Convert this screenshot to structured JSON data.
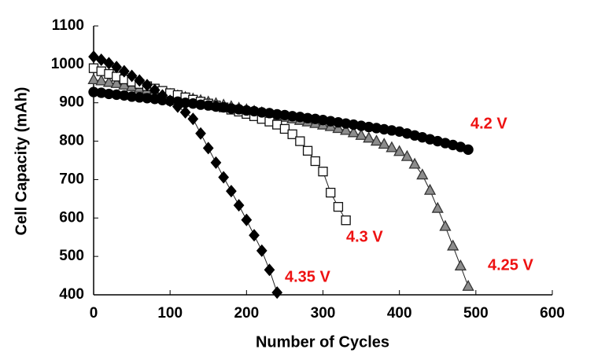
{
  "chart_data": {
    "type": "line",
    "xlabel": "Number of Cycles",
    "ylabel": "Cell Capacity (mAh)",
    "xlim": [
      0,
      600
    ],
    "xticks": [
      0,
      100,
      200,
      300,
      400,
      500,
      600
    ],
    "ylim": [
      400,
      1100
    ],
    "yticks": [
      400,
      500,
      600,
      700,
      800,
      900,
      1000,
      1100
    ],
    "label_color": "#ee1111",
    "series": [
      {
        "name": "4.25 V",
        "marker": "triangle",
        "color": "#8c8c8c",
        "edgecolor": "#333333",
        "x": [
          0,
          10,
          20,
          30,
          40,
          50,
          60,
          70,
          80,
          90,
          100,
          110,
          120,
          130,
          140,
          150,
          160,
          170,
          180,
          190,
          200,
          210,
          220,
          230,
          240,
          250,
          260,
          270,
          280,
          290,
          300,
          310,
          320,
          330,
          340,
          350,
          360,
          370,
          380,
          390,
          400,
          410,
          420,
          430,
          440,
          450,
          460,
          470,
          480,
          490
        ],
        "values": [
          960,
          957,
          953,
          950,
          946,
          942,
          938,
          934,
          930,
          926,
          922,
          918,
          914,
          910,
          906,
          902,
          898,
          894,
          890,
          886,
          882,
          878,
          874,
          870,
          866,
          862,
          858,
          854,
          850,
          846,
          842,
          838,
          833,
          828,
          822,
          815,
          808,
          800,
          792,
          783,
          773,
          760,
          740,
          712,
          672,
          625,
          578,
          527,
          475,
          422
        ]
      },
      {
        "name": "4.3 V",
        "marker": "square",
        "color": "#ffffff",
        "edgecolor": "#111111",
        "x": [
          0,
          10,
          20,
          30,
          40,
          50,
          60,
          70,
          80,
          90,
          100,
          110,
          120,
          130,
          140,
          150,
          160,
          170,
          180,
          190,
          200,
          210,
          220,
          230,
          240,
          250,
          260,
          270,
          280,
          290,
          300,
          310,
          320,
          330
        ],
        "values": [
          990,
          982,
          975,
          968,
          961,
          955,
          949,
          943,
          937,
          931,
          925,
          920,
          914,
          908,
          903,
          898,
          893,
          888,
          882,
          877,
          871,
          865,
          858,
          851,
          843,
          832,
          818,
          800,
          775,
          748,
          721,
          666,
          629,
          594
        ]
      },
      {
        "name": "4.2 V",
        "marker": "circle",
        "color": "#000000",
        "edgecolor": "#000000",
        "x": [
          0,
          10,
          20,
          30,
          40,
          50,
          60,
          70,
          80,
          90,
          100,
          110,
          120,
          130,
          140,
          150,
          160,
          170,
          180,
          190,
          200,
          210,
          220,
          230,
          240,
          250,
          260,
          270,
          280,
          290,
          300,
          310,
          320,
          330,
          340,
          350,
          360,
          370,
          380,
          390,
          400,
          410,
          420,
          430,
          440,
          450,
          460,
          470,
          480,
          490
        ],
        "values": [
          928,
          926,
          923,
          921,
          919,
          916,
          914,
          912,
          910,
          907,
          905,
          903,
          900,
          898,
          895,
          893,
          890,
          888,
          885,
          883,
          880,
          878,
          875,
          873,
          870,
          868,
          865,
          863,
          860,
          858,
          855,
          852,
          849,
          846,
          843,
          840,
          837,
          834,
          831,
          828,
          825,
          820,
          815,
          810,
          805,
          800,
          795,
          790,
          785,
          778
        ]
      },
      {
        "name": "4.35 V",
        "marker": "diamond",
        "color": "#000000",
        "edgecolor": "#000000",
        "x": [
          0,
          10,
          20,
          30,
          40,
          50,
          60,
          70,
          80,
          90,
          100,
          110,
          120,
          130,
          140,
          150,
          160,
          170,
          180,
          190,
          200,
          210,
          220,
          230,
          240
        ],
        "values": [
          1020,
          1012,
          1003,
          993,
          982,
          970,
          958,
          946,
          933,
          919,
          905,
          890,
          875,
          858,
          820,
          782,
          744,
          706,
          670,
          633,
          595,
          555,
          515,
          465,
          406
        ]
      }
    ]
  }
}
